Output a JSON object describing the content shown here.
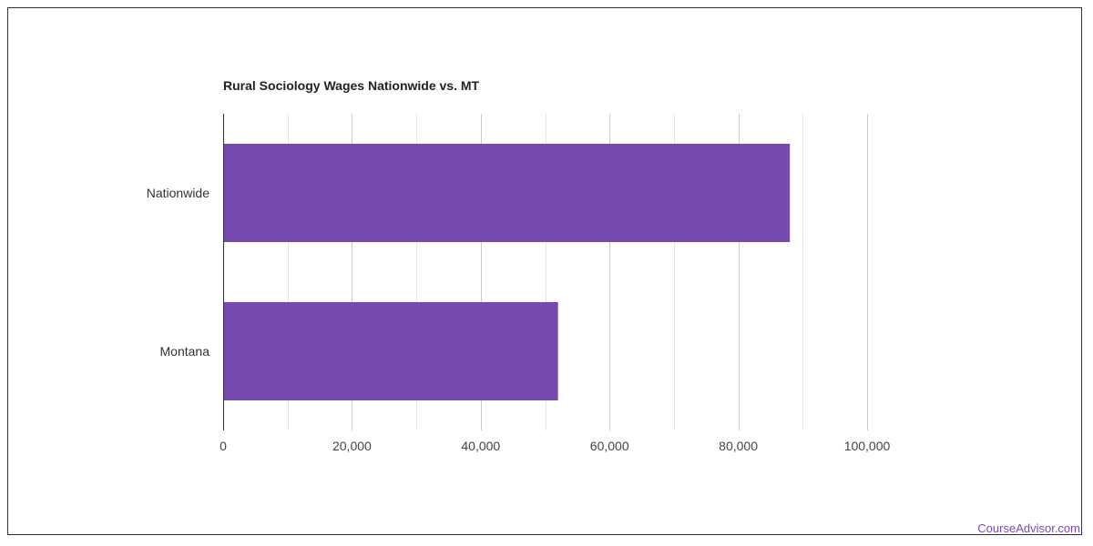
{
  "chart_data": {
    "type": "bar",
    "orientation": "horizontal",
    "title": "Rural Sociology Wages Nationwide vs. MT",
    "xlabel": "",
    "ylabel": "",
    "categories": [
      "Nationwide",
      "Montana"
    ],
    "values": [
      88000,
      52000
    ],
    "xlim": [
      0,
      100000
    ],
    "x_ticks": [
      0,
      20000,
      40000,
      60000,
      80000,
      100000
    ],
    "x_tick_labels": [
      "0",
      "20,000",
      "40,000",
      "60,000",
      "80,000",
      "100,000"
    ],
    "grid": true,
    "legend": "none",
    "bar_color": "#7649ae"
  },
  "branding": {
    "watermark": "CourseAdvisor.com",
    "color": "#7b4ab4"
  }
}
